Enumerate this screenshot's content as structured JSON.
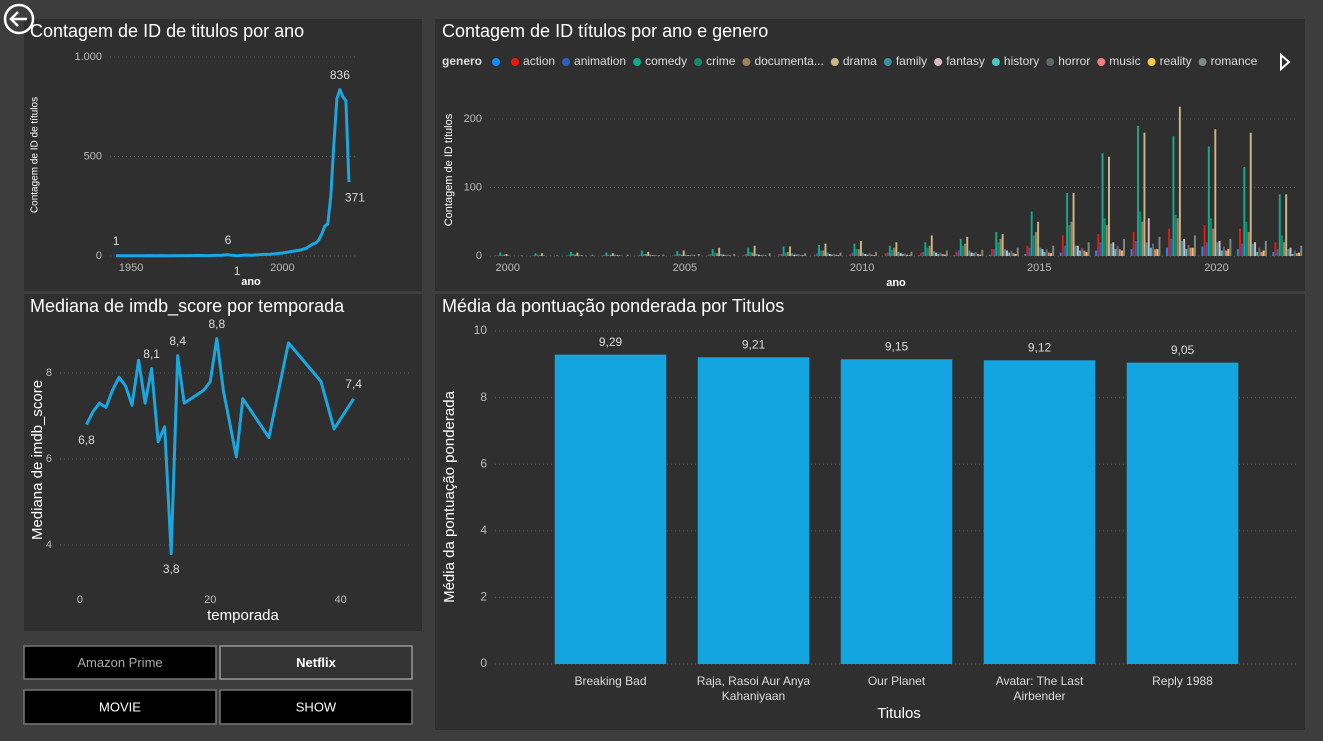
{
  "chart_data": [
    {
      "type": "line",
      "title": "Contagem de ID de titulos por ano",
      "x_label": "ano",
      "y_label": "Contagem de ID de títulos",
      "color": "#1aa7e0",
      "x": [
        1945,
        1954,
        1956,
        1958,
        1960,
        1963,
        1966,
        1969,
        1972,
        1975,
        1978,
        1980,
        1982,
        1985,
        1988,
        1990,
        1992,
        1994,
        1996,
        1998,
        2000,
        2002,
        2004,
        2006,
        2008,
        2010,
        2011,
        2012,
        2013,
        2014,
        2015,
        2016,
        2017,
        2018,
        2019,
        2020,
        2021,
        2022
      ],
      "values": [
        1,
        1,
        2,
        1,
        2,
        1,
        2,
        2,
        3,
        2,
        3,
        4,
        6,
        1,
        5,
        4,
        6,
        8,
        9,
        12,
        15,
        20,
        25,
        30,
        40,
        60,
        65,
        80,
        110,
        150,
        160,
        300,
        560,
        790,
        836,
        800,
        780,
        371
      ],
      "value_labels": [
        "1",
        null,
        null,
        null,
        null,
        null,
        null,
        null,
        null,
        null,
        null,
        null,
        "6",
        "1",
        null,
        null,
        null,
        null,
        null,
        null,
        null,
        null,
        null,
        null,
        null,
        null,
        null,
        null,
        null,
        null,
        null,
        null,
        null,
        null,
        "836",
        null,
        null,
        "371"
      ],
      "xlim": [
        1943,
        2024
      ],
      "ylim": [
        0,
        1000
      ],
      "xticks": [
        1950,
        2000
      ],
      "yticks": [
        0,
        500,
        {
          "value": 1000,
          "label": "1.000"
        }
      ],
      "grid": true
    },
    {
      "type": "grouped_bar",
      "title": "Contagem de ID títulos por ano e genero",
      "x_label": "ano",
      "y_label": "Contagem de ID títulos",
      "legend_title": "genero",
      "x": [
        2000,
        2001,
        2002,
        2003,
        2004,
        2005,
        2006,
        2007,
        2008,
        2009,
        2010,
        2011,
        2012,
        2013,
        2014,
        2015,
        2016,
        2017,
        2018,
        2019,
        2020,
        2021,
        2022
      ],
      "series": [
        {
          "name": null,
          "color": "#118dff",
          "values": [
            0,
            0,
            0,
            0,
            0,
            0,
            0,
            0,
            0,
            0,
            0,
            0,
            1,
            1,
            2,
            3,
            5,
            8,
            10,
            12,
            14,
            10,
            6
          ]
        },
        {
          "name": "action",
          "color": "#e8190f",
          "values": [
            1,
            0,
            1,
            1,
            1,
            1,
            2,
            2,
            3,
            2,
            3,
            4,
            5,
            6,
            10,
            15,
            30,
            32,
            35,
            40,
            45,
            40,
            20
          ]
        },
        {
          "name": "animation",
          "color": "#2f5fbf",
          "values": [
            1,
            1,
            2,
            2,
            2,
            2,
            3,
            3,
            3,
            4,
            5,
            5,
            6,
            8,
            10,
            12,
            15,
            20,
            22,
            25,
            20,
            18,
            10
          ]
        },
        {
          "name": "comedy",
          "color": "#16a88b",
          "values": [
            5,
            4,
            6,
            5,
            8,
            7,
            10,
            12,
            14,
            16,
            18,
            15,
            20,
            25,
            35,
            65,
            92,
            150,
            190,
            175,
            160,
            130,
            90
          ]
        },
        {
          "name": "crime",
          "color": "#128a6c",
          "values": [
            2,
            2,
            3,
            2,
            3,
            3,
            5,
            6,
            5,
            8,
            10,
            9,
            12,
            15,
            20,
            30,
            45,
            55,
            65,
            60,
            55,
            50,
            30
          ]
        },
        {
          "name": "documenta...",
          "color": "#a0805e",
          "values": [
            2,
            1,
            2,
            2,
            3,
            2,
            4,
            5,
            6,
            8,
            10,
            12,
            15,
            18,
            25,
            35,
            50,
            45,
            50,
            55,
            40,
            35,
            20
          ]
        },
        {
          "name": "drama",
          "color": "#c9b784",
          "values": [
            3,
            4,
            5,
            4,
            6,
            8,
            12,
            15,
            14,
            18,
            22,
            20,
            30,
            28,
            32,
            50,
            92,
            145,
            180,
            218,
            185,
            180,
            90
          ]
        },
        {
          "name": "family",
          "color": "#3a90a2",
          "values": [
            1,
            1,
            1,
            2,
            2,
            2,
            3,
            3,
            4,
            5,
            5,
            6,
            7,
            8,
            10,
            12,
            15,
            18,
            20,
            22,
            20,
            18,
            10
          ]
        },
        {
          "name": "fantasy",
          "color": "#dcb8c6",
          "values": [
            0,
            0,
            1,
            1,
            1,
            1,
            2,
            2,
            2,
            3,
            3,
            4,
            5,
            5,
            8,
            10,
            15,
            20,
            55,
            25,
            22,
            20,
            12
          ]
        },
        {
          "name": "history",
          "color": "#4cc4c4",
          "values": [
            0,
            0,
            0,
            1,
            1,
            1,
            1,
            1,
            2,
            2,
            2,
            3,
            3,
            4,
            5,
            6,
            8,
            10,
            12,
            10,
            8,
            6,
            3
          ]
        },
        {
          "name": "horror",
          "color": "#5c6a6c",
          "values": [
            0,
            1,
            1,
            1,
            1,
            2,
            2,
            2,
            3,
            3,
            4,
            4,
            5,
            6,
            8,
            10,
            12,
            15,
            18,
            16,
            14,
            12,
            8
          ]
        },
        {
          "name": "music",
          "color": "#f08080",
          "values": [
            0,
            0,
            0,
            0,
            1,
            1,
            1,
            1,
            1,
            2,
            2,
            2,
            3,
            3,
            4,
            5,
            8,
            10,
            10,
            12,
            8,
            6,
            4
          ]
        },
        {
          "name": "reality",
          "color": "#f2c94c",
          "values": [
            0,
            0,
            0,
            0,
            0,
            0,
            0,
            0,
            1,
            1,
            1,
            1,
            2,
            2,
            3,
            4,
            6,
            8,
            10,
            12,
            10,
            8,
            5
          ]
        },
        {
          "name": "romance",
          "color": "#7f8a86",
          "values": [
            1,
            1,
            2,
            2,
            2,
            3,
            3,
            4,
            4,
            5,
            6,
            6,
            8,
            9,
            12,
            15,
            20,
            25,
            28,
            30,
            25,
            22,
            15
          ]
        }
      ],
      "xlim": [
        1999.5,
        2022.3
      ],
      "ylim": [
        0,
        240
      ],
      "xticks": [
        2000,
        2005,
        2010,
        2015,
        2020
      ],
      "yticks": [
        0,
        100,
        200
      ],
      "grid": true
    },
    {
      "type": "line",
      "title": "Mediana de imdb_score por temporada",
      "x_label": "temporada",
      "y_label": "Mediana de imdb_score",
      "color": "#1aa7e0",
      "x": [
        1,
        2,
        3,
        4,
        5,
        6,
        7,
        8,
        9,
        10,
        11,
        12,
        13,
        14,
        15,
        16,
        19,
        20,
        21,
        22,
        24,
        25,
        29,
        32,
        37,
        39,
        42
      ],
      "values": [
        6.8,
        7.1,
        7.3,
        7.2,
        7.6,
        7.9,
        7.7,
        7.25,
        8.3,
        7.3,
        8.1,
        6.4,
        6.75,
        3.8,
        8.4,
        7.3,
        7.6,
        7.8,
        8.8,
        7.6,
        6.05,
        7.4,
        6.5,
        8.7,
        7.8,
        6.7,
        7.4
      ],
      "value_labels": [
        "6,8",
        null,
        null,
        null,
        null,
        null,
        null,
        null,
        null,
        null,
        "8,1",
        null,
        null,
        "3,8",
        "8,4",
        null,
        null,
        null,
        "8,8",
        null,
        null,
        null,
        null,
        null,
        null,
        null,
        "7,4"
      ],
      "xlim": [
        -3,
        50.5
      ],
      "ylim": [
        3,
        9
      ],
      "xticks": [
        0,
        20,
        40
      ],
      "yticks": [
        4,
        6,
        8
      ],
      "grid": true
    },
    {
      "type": "bar",
      "title": "Média da pontuação ponderada por Titulos",
      "x_label": "Titulos",
      "y_label": "Média da pontuação ponderada",
      "color": "#12a5e0",
      "categories": [
        "Breaking Bad",
        "Raja, Rasoi Aur Anya Kahaniyaan",
        "Our Planet",
        "Avatar: The Last Airbender",
        "Reply 1988"
      ],
      "values": [
        9.29,
        9.21,
        9.15,
        9.12,
        9.05
      ],
      "value_labels": [
        "9,29",
        "9,21",
        "9,15",
        "9,12",
        "9,05"
      ],
      "ylim": [
        0,
        10
      ],
      "yticks": [
        0,
        2,
        4,
        6,
        8,
        10
      ],
      "grid": true
    }
  ],
  "slicers": {
    "platforms": [
      "Amazon Prime",
      "Netflix"
    ],
    "types": [
      "MOVIE",
      "SHOW"
    ]
  }
}
